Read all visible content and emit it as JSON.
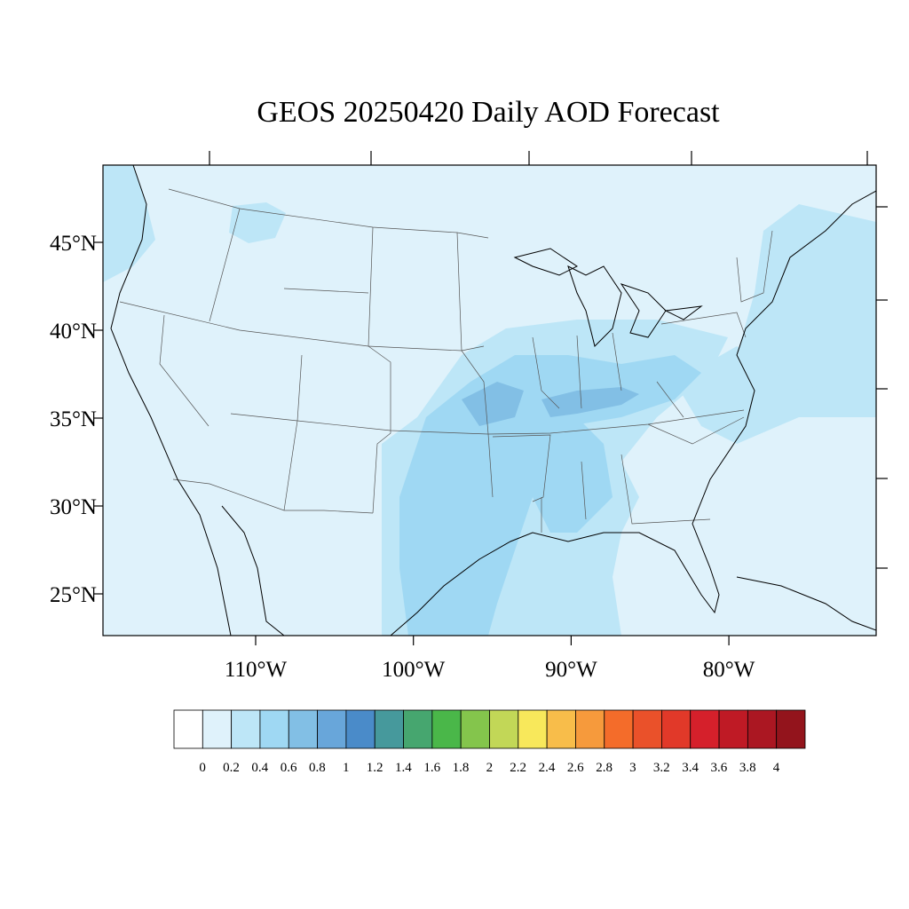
{
  "title": "GEOS 20250420 Daily AOD Forecast",
  "map": {
    "lat_labels": [
      {
        "value": 45,
        "text": "45°N"
      },
      {
        "value": 40,
        "text": "40°N"
      },
      {
        "value": 35,
        "text": "35°N"
      },
      {
        "value": 30,
        "text": "30°N"
      },
      {
        "value": 25,
        "text": "25°N"
      }
    ],
    "lon_labels": [
      {
        "value": -110,
        "text": "110°W"
      },
      {
        "value": -100,
        "text": "100°W"
      },
      {
        "value": -90,
        "text": "90°W"
      },
      {
        "value": -80,
        "text": "80°W"
      }
    ],
    "background_color": "#dff2fb"
  },
  "colorbar": {
    "colors": [
      "#ffffff",
      "#dff2fb",
      "#bde6f7",
      "#9fd8f3",
      "#82bfe5",
      "#68a6da",
      "#4a8bc9",
      "#46999c",
      "#46a66f",
      "#4ab749",
      "#84c54c",
      "#c2d757",
      "#f8e85b",
      "#f8bd4a",
      "#f69a3c",
      "#f46c2a",
      "#ea512a",
      "#e13929",
      "#d5202b",
      "#bf1a25",
      "#ab1722",
      "#93141c"
    ],
    "labels": [
      "0",
      "0.2",
      "0.4",
      "0.6",
      "0.8",
      "1",
      "1.2",
      "1.4",
      "1.6",
      "1.8",
      "2",
      "2.2",
      "2.4",
      "2.6",
      "2.8",
      "3",
      "3.2",
      "3.4",
      "3.6",
      "3.8",
      "4"
    ]
  }
}
